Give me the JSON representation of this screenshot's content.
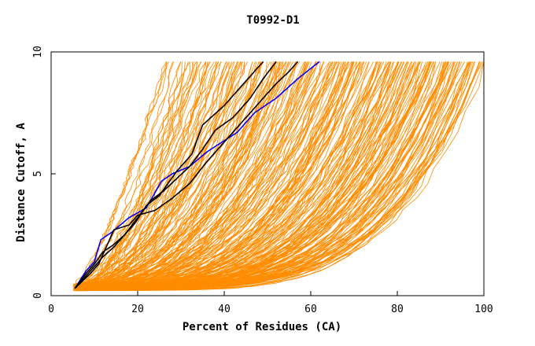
{
  "chart_data": {
    "type": "line",
    "title": "T0992-D1",
    "xlabel": "Percent of Residues (CA)",
    "ylabel": "Distance Cutoff, A",
    "xlim": [
      0,
      100
    ],
    "ylim": [
      0,
      10
    ],
    "x_ticks": [
      "0",
      "20",
      "40",
      "60",
      "80",
      "100"
    ],
    "y_ticks": [
      "0",
      "5",
      "10"
    ],
    "grid": false,
    "colors": {
      "background_series": "#ff8c00",
      "highlight_black": "#000000",
      "highlight_blue": "#0000ff",
      "axis": "#000000"
    },
    "series": [
      {
        "color": "#0000ff",
        "x": [
          5.5,
          8,
          10,
          11.5,
          14,
          18,
          22,
          25.5,
          28,
          32,
          36,
          43,
          47,
          52,
          57,
          62
        ],
        "y": [
          0.3,
          1.0,
          1.4,
          2.3,
          2.6,
          3.2,
          3.6,
          4.7,
          5.0,
          5.3,
          5.9,
          6.7,
          7.5,
          8.1,
          8.9,
          9.6
        ]
      },
      {
        "color": "#000000",
        "x": [
          5.5,
          8,
          10,
          12,
          14.5,
          17,
          19.5,
          22,
          25,
          27,
          29,
          32.5,
          35,
          40,
          45,
          49
        ],
        "y": [
          0.3,
          0.9,
          1.3,
          1.8,
          2.1,
          2.5,
          3.0,
          3.7,
          4.1,
          4.6,
          5.1,
          5.8,
          7.0,
          7.8,
          8.8,
          9.6
        ]
      },
      {
        "color": "#000000",
        "x": [
          5.5,
          9,
          12,
          14.5,
          17,
          20,
          23,
          26,
          29,
          32,
          35,
          38,
          42,
          46,
          49,
          52
        ],
        "y": [
          0.3,
          1.0,
          1.6,
          2.0,
          2.5,
          3.2,
          3.9,
          4.3,
          4.8,
          5.3,
          6.0,
          6.8,
          7.3,
          8.1,
          8.9,
          9.6
        ]
      },
      {
        "color": "#000000",
        "x": [
          5.5,
          9,
          11,
          14.5,
          18,
          20,
          24,
          28,
          32,
          36,
          40,
          44,
          48,
          52,
          55,
          57
        ],
        "y": [
          0.3,
          0.9,
          1.3,
          2.7,
          2.9,
          3.3,
          3.5,
          4.0,
          4.6,
          5.5,
          6.3,
          7.1,
          7.9,
          8.7,
          9.2,
          9.6
        ]
      }
    ]
  }
}
